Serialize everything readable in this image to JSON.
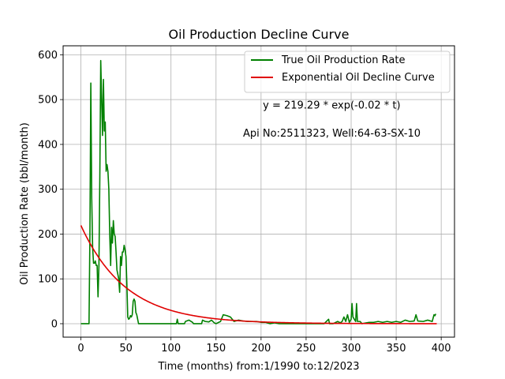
{
  "chart_data": {
    "type": "line",
    "title": "Oil Production Decline Curve",
    "xlabel": "Time (months) from:1/1990 to:12/2023",
    "ylabel": "Oil Production Rate (bbl/month)",
    "xlim": [
      -19.75,
      414.75
    ],
    "ylim": [
      -30,
      620
    ],
    "xticks": [
      0,
      50,
      100,
      150,
      200,
      250,
      300,
      350,
      400
    ],
    "yticks": [
      0,
      100,
      200,
      300,
      400,
      500,
      600
    ],
    "grid": true,
    "legend_position": "top-right",
    "annotations": [
      {
        "text": "y = 219.29 * exp(-0.02 * t)",
        "x": 202,
        "y": 480
      },
      {
        "text": "Api No:2511323, Well:64-63-SX-10",
        "x": 180,
        "y": 417
      }
    ],
    "series": [
      {
        "name": "True Oil Production Rate",
        "color": "#008000",
        "points": [
          [
            0,
            0
          ],
          [
            9,
            0
          ],
          [
            10,
            200
          ],
          [
            11,
            537
          ],
          [
            12,
            280
          ],
          [
            13,
            170
          ],
          [
            14,
            135
          ],
          [
            15,
            135
          ],
          [
            16,
            140
          ],
          [
            17,
            130
          ],
          [
            18,
            130
          ],
          [
            19,
            60
          ],
          [
            20,
            130
          ],
          [
            21,
            330
          ],
          [
            22,
            587
          ],
          [
            23,
            500
          ],
          [
            24,
            420
          ],
          [
            25,
            545
          ],
          [
            26,
            430
          ],
          [
            27,
            450
          ],
          [
            28,
            340
          ],
          [
            29,
            355
          ],
          [
            30,
            340
          ],
          [
            31,
            300
          ],
          [
            32,
            200
          ],
          [
            33,
            130
          ],
          [
            34,
            215
          ],
          [
            35,
            180
          ],
          [
            36,
            230
          ],
          [
            37,
            200
          ],
          [
            38,
            195
          ],
          [
            39,
            160
          ],
          [
            40,
            120
          ],
          [
            41,
            110
          ],
          [
            42,
            100
          ],
          [
            43,
            70
          ],
          [
            44,
            150
          ],
          [
            45,
            130
          ],
          [
            46,
            160
          ],
          [
            47,
            160
          ],
          [
            48,
            175
          ],
          [
            49,
            165
          ],
          [
            50,
            150
          ],
          [
            51,
            90
          ],
          [
            52,
            15
          ],
          [
            53,
            10
          ],
          [
            54,
            12
          ],
          [
            55,
            18
          ],
          [
            56,
            15
          ],
          [
            57,
            20
          ],
          [
            58,
            50
          ],
          [
            59,
            55
          ],
          [
            60,
            50
          ],
          [
            61,
            25
          ],
          [
            62,
            20
          ],
          [
            63,
            10
          ],
          [
            64,
            0
          ],
          [
            65,
            0
          ],
          [
            70,
            0
          ],
          [
            80,
            0
          ],
          [
            90,
            0
          ],
          [
            100,
            0
          ],
          [
            106,
            0
          ],
          [
            107,
            10
          ],
          [
            108,
            0
          ],
          [
            115,
            0
          ],
          [
            116,
            5
          ],
          [
            120,
            8
          ],
          [
            124,
            3
          ],
          [
            125,
            0
          ],
          [
            130,
            0
          ],
          [
            134,
            0
          ],
          [
            135,
            8
          ],
          [
            138,
            5
          ],
          [
            142,
            4
          ],
          [
            145,
            8
          ],
          [
            148,
            2
          ],
          [
            150,
            0
          ],
          [
            155,
            5
          ],
          [
            158,
            20
          ],
          [
            162,
            18
          ],
          [
            166,
            15
          ],
          [
            170,
            5
          ],
          [
            175,
            8
          ],
          [
            180,
            6
          ],
          [
            185,
            5
          ],
          [
            190,
            5
          ],
          [
            195,
            5
          ],
          [
            200,
            3
          ],
          [
            205,
            3
          ],
          [
            210,
            0
          ],
          [
            215,
            2
          ],
          [
            220,
            0
          ],
          [
            230,
            0
          ],
          [
            240,
            0
          ],
          [
            250,
            0
          ],
          [
            260,
            0
          ],
          [
            270,
            0
          ],
          [
            275,
            10
          ],
          [
            276,
            0
          ],
          [
            280,
            0
          ],
          [
            285,
            5
          ],
          [
            288,
            2
          ],
          [
            290,
            5
          ],
          [
            292,
            15
          ],
          [
            294,
            5
          ],
          [
            296,
            20
          ],
          [
            298,
            3
          ],
          [
            300,
            10
          ],
          [
            301,
            45
          ],
          [
            302,
            15
          ],
          [
            305,
            5
          ],
          [
            306,
            45
          ],
          [
            307,
            5
          ],
          [
            310,
            5
          ],
          [
            312,
            0
          ],
          [
            320,
            3
          ],
          [
            325,
            3
          ],
          [
            330,
            5
          ],
          [
            335,
            3
          ],
          [
            340,
            5
          ],
          [
            345,
            3
          ],
          [
            350,
            5
          ],
          [
            355,
            3
          ],
          [
            360,
            8
          ],
          [
            365,
            5
          ],
          [
            370,
            6
          ],
          [
            372,
            20
          ],
          [
            374,
            6
          ],
          [
            380,
            5
          ],
          [
            385,
            8
          ],
          [
            390,
            5
          ],
          [
            392,
            20
          ],
          [
            393,
            18
          ],
          [
            394,
            22
          ]
        ]
      },
      {
        "name": "Exponential Oil Decline Curve",
        "color": "#e00000",
        "function": {
          "a": 219.29,
          "b": 0.02,
          "t_start": 0,
          "t_end": 395
        }
      }
    ]
  }
}
